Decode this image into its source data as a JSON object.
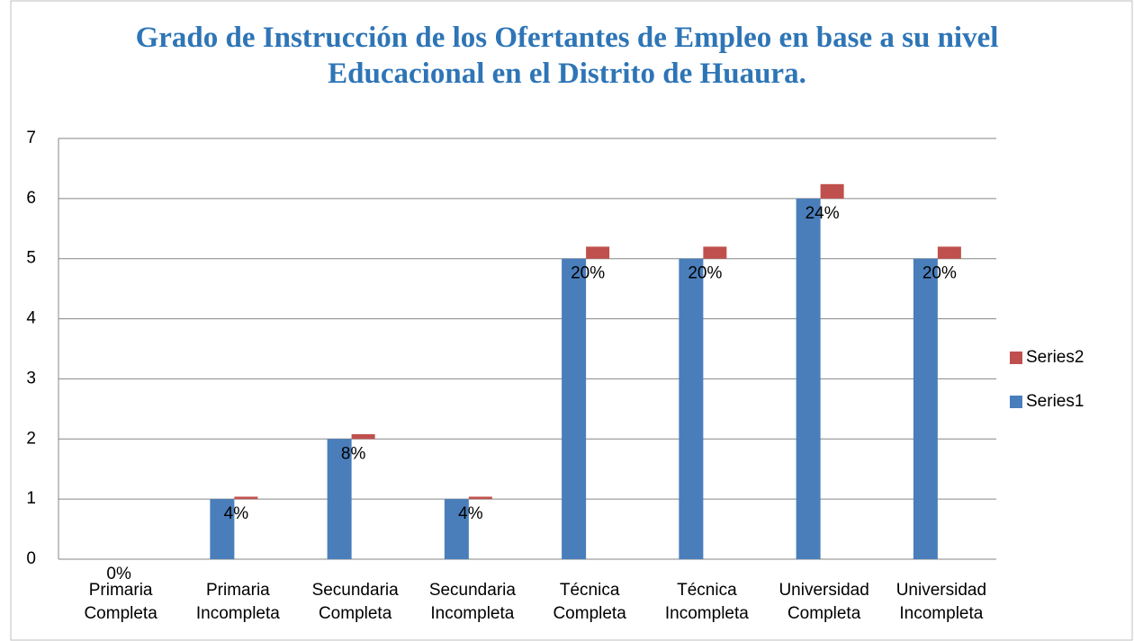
{
  "chart_data": {
    "type": "bar",
    "title": "Grado de Instrucción de los Ofertantes de Empleo en base a su nivel Educacional  en el Distrito de Huaura.",
    "categories": [
      "Primaria Completa",
      "Primaria Incompleta",
      "Secundaria Completa",
      "Secundaria Incompleta",
      "Técnica Completa",
      "Técnica Incompleta",
      "Universidad Completa",
      "Universidad Incompleta"
    ],
    "series": [
      {
        "name": "Series1",
        "color": "#4a7ebb",
        "values": [
          0,
          1,
          2,
          1,
          5,
          5,
          6,
          5
        ]
      },
      {
        "name": "Series2",
        "color": "#c0504d",
        "values": [
          0,
          0.04,
          0.08,
          0.04,
          0.2,
          0.2,
          0.24,
          0.2
        ],
        "value_labels": [
          "0%",
          "4%",
          "8%",
          "4%",
          "20%",
          "20%",
          "24%",
          "20%"
        ]
      }
    ],
    "ylim": [
      0,
      7
    ],
    "yticks": [
      0,
      1,
      2,
      3,
      4,
      5,
      6,
      7
    ],
    "grid": true,
    "stacked": true,
    "legend": "right"
  }
}
